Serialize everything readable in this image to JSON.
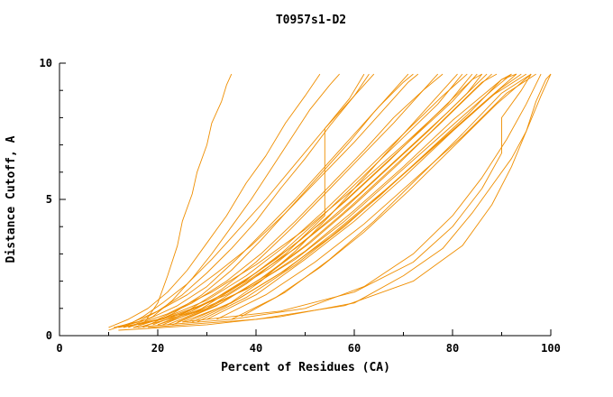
{
  "page": {
    "background": "#ffffff"
  },
  "chart_data": {
    "type": "line",
    "title": "T0957s1-D2",
    "xlabel": "Percent of Residues (CA)",
    "ylabel": "Distance Cutoff, A",
    "xlim": [
      0,
      100
    ],
    "ylim": [
      0,
      10
    ],
    "x_ticks": [
      0,
      20,
      40,
      60,
      80,
      100
    ],
    "x_minor_step": 10,
    "y_ticks": [
      0,
      5,
      10
    ],
    "y_minor_step": 1,
    "grid": false,
    "legend": "none",
    "line_color": "#ef8e00",
    "axis_color": "#000000",
    "series": [
      [
        [
          17,
          0.4
        ],
        [
          20,
          1.2
        ],
        [
          22,
          2.2
        ],
        [
          24,
          3.3
        ],
        [
          25,
          4.2
        ],
        [
          27,
          5.2
        ],
        [
          28,
          6.0
        ],
        [
          30,
          7.0
        ],
        [
          31,
          7.8
        ],
        [
          33,
          8.6
        ],
        [
          34,
          9.2
        ],
        [
          35,
          9.6
        ]
      ],
      [
        [
          10,
          0.3
        ],
        [
          14,
          0.6
        ],
        [
          18,
          1.0
        ],
        [
          22,
          1.6
        ],
        [
          26,
          2.4
        ],
        [
          30,
          3.4
        ],
        [
          34,
          4.4
        ],
        [
          38,
          5.6
        ],
        [
          42,
          6.6
        ],
        [
          46,
          7.8
        ],
        [
          50,
          8.8
        ],
        [
          53,
          9.6
        ]
      ],
      [
        [
          12,
          0.3
        ],
        [
          16,
          0.5
        ],
        [
          20,
          0.9
        ],
        [
          25,
          1.5
        ],
        [
          30,
          2.3
        ],
        [
          35,
          3.2
        ],
        [
          40,
          4.2
        ],
        [
          45,
          5.4
        ],
        [
          50,
          6.5
        ],
        [
          55,
          7.7
        ],
        [
          60,
          8.8
        ],
        [
          63,
          9.6
        ]
      ],
      [
        [
          11,
          0.3
        ],
        [
          18,
          0.6
        ],
        [
          24,
          1.1
        ],
        [
          30,
          1.8
        ],
        [
          36,
          2.8
        ],
        [
          42,
          3.9
        ],
        [
          48,
          5.0
        ],
        [
          54,
          6.2
        ],
        [
          60,
          7.4
        ],
        [
          65,
          8.4
        ],
        [
          70,
          9.3
        ],
        [
          72,
          9.6
        ]
      ],
      [
        [
          13,
          0.3
        ],
        [
          20,
          0.6
        ],
        [
          27,
          1.2
        ],
        [
          34,
          2.0
        ],
        [
          41,
          3.0
        ],
        [
          48,
          4.2
        ],
        [
          55,
          5.5
        ],
        [
          62,
          6.8
        ],
        [
          68,
          8.0
        ],
        [
          74,
          9.0
        ],
        [
          78,
          9.6
        ]
      ],
      [
        [
          15,
          0.3
        ],
        [
          22,
          0.7
        ],
        [
          30,
          1.3
        ],
        [
          38,
          2.2
        ],
        [
          46,
          3.3
        ],
        [
          54,
          4.6
        ],
        [
          62,
          6.0
        ],
        [
          70,
          7.4
        ],
        [
          78,
          8.8
        ],
        [
          83,
          9.6
        ]
      ],
      [
        [
          16,
          0.4
        ],
        [
          25,
          0.8
        ],
        [
          34,
          1.5
        ],
        [
          43,
          2.5
        ],
        [
          52,
          3.8
        ],
        [
          61,
          5.2
        ],
        [
          70,
          6.7
        ],
        [
          79,
          8.2
        ],
        [
          87,
          9.6
        ]
      ],
      [
        [
          18,
          0.4
        ],
        [
          28,
          0.9
        ],
        [
          38,
          1.7
        ],
        [
          48,
          2.8
        ],
        [
          58,
          4.2
        ],
        [
          68,
          5.8
        ],
        [
          78,
          7.4
        ],
        [
          88,
          9.0
        ],
        [
          92,
          9.6
        ]
      ],
      [
        [
          20,
          0.4
        ],
        [
          30,
          1.0
        ],
        [
          40,
          1.9
        ],
        [
          50,
          3.1
        ],
        [
          60,
          4.6
        ],
        [
          70,
          6.2
        ],
        [
          80,
          7.9
        ],
        [
          90,
          9.4
        ],
        [
          93,
          9.6
        ]
      ],
      [
        [
          12,
          0.2
        ],
        [
          30,
          0.4
        ],
        [
          45,
          0.7
        ],
        [
          60,
          1.2
        ],
        [
          70,
          2.2
        ],
        [
          78,
          3.2
        ],
        [
          84,
          4.5
        ],
        [
          88,
          5.5
        ],
        [
          92,
          6.5
        ],
        [
          95,
          7.5
        ],
        [
          98,
          8.8
        ],
        [
          100,
          9.6
        ]
      ],
      [
        [
          14,
          0.3
        ],
        [
          19,
          0.7
        ],
        [
          23,
          1.3
        ],
        [
          27,
          2.1
        ],
        [
          31,
          3.0
        ],
        [
          35,
          4.0
        ],
        [
          39,
          5.0
        ],
        [
          43,
          6.1
        ],
        [
          47,
          7.2
        ],
        [
          51,
          8.3
        ],
        [
          55,
          9.2
        ],
        [
          57,
          9.6
        ]
      ],
      [
        [
          17,
          0.3
        ],
        [
          23,
          0.8
        ],
        [
          29,
          1.5
        ],
        [
          35,
          2.4
        ],
        [
          41,
          3.5
        ],
        [
          47,
          4.7
        ],
        [
          53,
          5.9
        ],
        [
          59,
          7.1
        ],
        [
          64,
          8.2
        ],
        [
          69,
          9.2
        ],
        [
          71,
          9.6
        ]
      ],
      [
        [
          19,
          0.4
        ],
        [
          26,
          0.9
        ],
        [
          33,
          1.7
        ],
        [
          40,
          2.7
        ],
        [
          47,
          3.9
        ],
        [
          54,
          5.2
        ],
        [
          61,
          6.5
        ],
        [
          68,
          7.8
        ],
        [
          74,
          9.0
        ],
        [
          77,
          9.6
        ]
      ],
      [
        [
          21,
          0.4
        ],
        [
          29,
          1.0
        ],
        [
          37,
          1.9
        ],
        [
          45,
          3.0
        ],
        [
          53,
          4.3
        ],
        [
          61,
          5.7
        ],
        [
          69,
          7.1
        ],
        [
          77,
          8.5
        ],
        [
          82,
          9.6
        ]
      ],
      [
        [
          23,
          0.4
        ],
        [
          32,
          1.1
        ],
        [
          41,
          2.1
        ],
        [
          50,
          3.3
        ],
        [
          59,
          4.7
        ],
        [
          68,
          6.2
        ],
        [
          77,
          7.7
        ],
        [
          85,
          9.1
        ],
        [
          88,
          9.6
        ]
      ],
      [
        [
          25,
          0.5
        ],
        [
          35,
          1.2
        ],
        [
          45,
          2.3
        ],
        [
          55,
          3.6
        ],
        [
          65,
          5.1
        ],
        [
          74,
          6.6
        ],
        [
          83,
          8.1
        ],
        [
          90,
          9.4
        ],
        [
          92,
          9.6
        ]
      ],
      [
        [
          22,
          0.4
        ],
        [
          30,
          1.0
        ],
        [
          38,
          1.9
        ],
        [
          46,
          3.0
        ],
        [
          54,
          4.4
        ],
        [
          54,
          7.6
        ],
        [
          58,
          8.4
        ],
        [
          62,
          9.2
        ],
        [
          64,
          9.6
        ]
      ],
      [
        [
          13,
          0.3
        ],
        [
          17,
          0.7
        ],
        [
          21,
          1.2
        ],
        [
          26,
          1.9
        ],
        [
          31,
          2.8
        ],
        [
          36,
          3.8
        ],
        [
          42,
          5.0
        ],
        [
          48,
          6.3
        ],
        [
          54,
          7.6
        ],
        [
          59,
          8.7
        ],
        [
          62,
          9.6
        ]
      ],
      [
        [
          24,
          0.5
        ],
        [
          33,
          1.2
        ],
        [
          42,
          2.2
        ],
        [
          51,
          3.4
        ],
        [
          60,
          4.8
        ],
        [
          69,
          6.3
        ],
        [
          78,
          7.9
        ],
        [
          86,
          9.3
        ],
        [
          89,
          9.6
        ]
      ],
      [
        [
          26,
          0.5
        ],
        [
          36,
          1.3
        ],
        [
          46,
          2.4
        ],
        [
          56,
          3.8
        ],
        [
          66,
          5.3
        ],
        [
          76,
          6.9
        ],
        [
          86,
          8.5
        ],
        [
          93,
          9.6
        ]
      ],
      [
        [
          28,
          0.5
        ],
        [
          38,
          1.4
        ],
        [
          48,
          2.6
        ],
        [
          58,
          4.0
        ],
        [
          68,
          5.6
        ],
        [
          78,
          7.2
        ],
        [
          88,
          8.8
        ],
        [
          95,
          9.6
        ]
      ],
      [
        [
          30,
          0.6
        ],
        [
          40,
          1.5
        ],
        [
          50,
          2.8
        ],
        [
          60,
          4.2
        ],
        [
          70,
          5.8
        ],
        [
          80,
          7.5
        ],
        [
          90,
          9.1
        ],
        [
          94,
          9.6
        ]
      ],
      [
        [
          15,
          0.3
        ],
        [
          35,
          0.6
        ],
        [
          50,
          1.0
        ],
        [
          62,
          1.8
        ],
        [
          72,
          3.0
        ],
        [
          80,
          4.4
        ],
        [
          86,
          5.8
        ],
        [
          91,
          7.2
        ],
        [
          95,
          8.5
        ],
        [
          98,
          9.6
        ]
      ],
      [
        [
          10,
          0.2
        ],
        [
          15,
          0.5
        ],
        [
          20,
          0.9
        ],
        [
          26,
          1.5
        ],
        [
          32,
          2.3
        ],
        [
          39,
          3.3
        ],
        [
          46,
          4.5
        ],
        [
          53,
          5.8
        ],
        [
          60,
          7.1
        ],
        [
          66,
          8.3
        ],
        [
          71,
          9.3
        ],
        [
          73,
          9.6
        ]
      ],
      [
        [
          12,
          0.3
        ],
        [
          21,
          0.6
        ],
        [
          30,
          1.2
        ],
        [
          39,
          2.1
        ],
        [
          48,
          3.2
        ],
        [
          57,
          4.5
        ],
        [
          66,
          6.0
        ],
        [
          75,
          7.5
        ],
        [
          83,
          8.9
        ],
        [
          86,
          9.6
        ]
      ],
      [
        [
          35,
          0.6
        ],
        [
          44,
          1.4
        ],
        [
          53,
          2.5
        ],
        [
          62,
          3.8
        ],
        [
          71,
          5.3
        ],
        [
          80,
          6.9
        ],
        [
          89,
          8.5
        ],
        [
          96,
          9.6
        ]
      ],
      [
        [
          32,
          0.6
        ],
        [
          42,
          1.5
        ],
        [
          52,
          2.7
        ],
        [
          62,
          4.1
        ],
        [
          72,
          5.7
        ],
        [
          82,
          7.3
        ],
        [
          91,
          8.9
        ],
        [
          97,
          9.6
        ]
      ],
      [
        [
          27,
          0.5
        ],
        [
          34,
          1.1
        ],
        [
          41,
          2.0
        ],
        [
          48,
          3.1
        ],
        [
          55,
          4.4
        ],
        [
          62,
          5.8
        ],
        [
          69,
          7.2
        ],
        [
          76,
          8.6
        ],
        [
          81,
          9.6
        ]
      ],
      [
        [
          18,
          0.3
        ],
        [
          40,
          0.6
        ],
        [
          58,
          1.1
        ],
        [
          72,
          2.0
        ],
        [
          82,
          3.3
        ],
        [
          88,
          4.8
        ],
        [
          92,
          6.2
        ],
        [
          95,
          7.5
        ],
        [
          97,
          8.6
        ],
        [
          99,
          9.4
        ],
        [
          100,
          9.6
        ]
      ],
      [
        [
          16,
          0.3
        ],
        [
          24,
          0.7
        ],
        [
          32,
          1.4
        ],
        [
          40,
          2.3
        ],
        [
          49,
          3.5
        ],
        [
          58,
          4.9
        ],
        [
          67,
          6.4
        ],
        [
          76,
          8.0
        ],
        [
          84,
          9.4
        ],
        [
          86,
          9.6
        ]
      ],
      [
        [
          20,
          0.4
        ],
        [
          27,
          0.9
        ],
        [
          35,
          1.7
        ],
        [
          44,
          2.8
        ],
        [
          53,
          4.1
        ],
        [
          62,
          5.6
        ],
        [
          71,
          7.1
        ],
        [
          80,
          8.6
        ],
        [
          85,
          9.6
        ]
      ],
      [
        [
          37,
          0.7
        ],
        [
          46,
          1.6
        ],
        [
          55,
          2.8
        ],
        [
          64,
          4.2
        ],
        [
          73,
          5.8
        ],
        [
          82,
          7.4
        ],
        [
          90,
          8.9
        ],
        [
          96,
          9.6
        ]
      ],
      [
        [
          25,
          0.5
        ],
        [
          45,
          0.9
        ],
        [
          60,
          1.6
        ],
        [
          72,
          2.7
        ],
        [
          80,
          4.0
        ],
        [
          86,
          5.4
        ],
        [
          90,
          6.7
        ],
        [
          90,
          8.0
        ],
        [
          94,
          9.0
        ],
        [
          96,
          9.6
        ]
      ],
      [
        [
          14,
          0.3
        ],
        [
          22,
          0.8
        ],
        [
          31,
          1.6
        ],
        [
          40,
          2.6
        ],
        [
          50,
          3.9
        ],
        [
          60,
          5.4
        ],
        [
          70,
          7.0
        ],
        [
          79,
          8.5
        ],
        [
          84,
          9.6
        ]
      ]
    ]
  }
}
